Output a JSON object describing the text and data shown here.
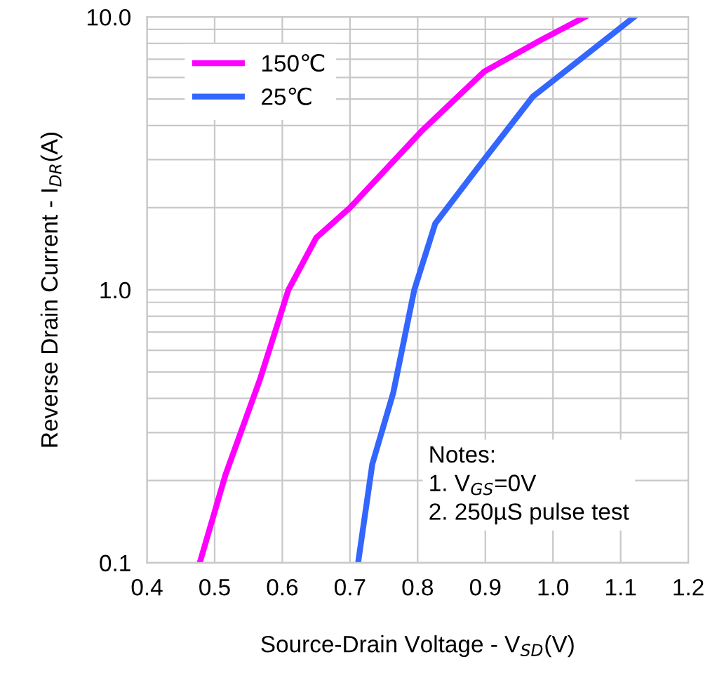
{
  "chart_data": {
    "type": "line",
    "xlabel": "Source-Drain Voltage - V$_{SD}$(V)",
    "ylabel": "Reverse Drain Current - I$_{DR}$(A)",
    "log": "y",
    "xlim": [
      0.4,
      1.2
    ],
    "xticks": [
      0.4,
      0.5,
      0.6,
      0.7,
      0.8,
      0.9,
      {
        "value": 1.0,
        "label": "1.0"
      },
      1.1,
      1.2
    ],
    "ylim": [
      0.1,
      10
    ],
    "yticks": [
      0.1,
      {
        "value": 1,
        "label": "1.0"
      },
      {
        "value": 10,
        "label": "10.0"
      }
    ],
    "grid": true,
    "legend": "top left",
    "marker": "none",
    "line_style": "solid",
    "annotations": [
      "Notes:\n1. V$_{GS}$=0V\n2. 250µS pulse test"
    ],
    "series": [
      {
        "name": "150℃",
        "color": "#ff00ff",
        "x": [
          0.478,
          0.516,
          0.567,
          0.609,
          0.65,
          0.7,
          0.805,
          0.898,
          0.981,
          1.047
        ],
        "values": [
          0.1,
          0.21,
          0.47,
          1.0,
          1.55,
          2.0,
          3.8,
          6.3,
          8.2,
          10
        ]
      },
      {
        "name": "25℃",
        "color": "#3366ff",
        "x": [
          0.712,
          0.733,
          0.764,
          0.795,
          0.826,
          0.898,
          0.97,
          1.053,
          1.12
        ],
        "values": [
          0.1,
          0.23,
          0.42,
          1.0,
          1.75,
          3.0,
          5.1,
          7.4,
          10
        ]
      }
    ]
  }
}
